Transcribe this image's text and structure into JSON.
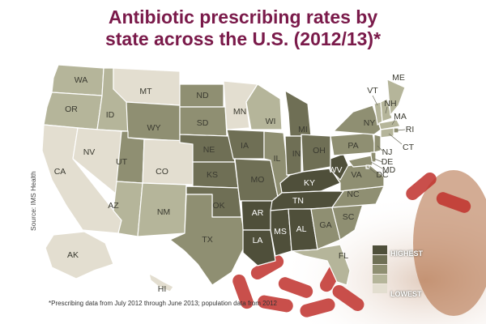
{
  "title": {
    "line1": "Antibiotic prescribing rates by",
    "line2": "state across the U.S. (2012/13)*"
  },
  "source": "Source: IMS Health",
  "footnote": "*Prescribing data from July 2012 through June 2013; population data from 2012",
  "legend": {
    "high_label": "HIGHEST",
    "low_label": "LOWEST",
    "colors": [
      "#4f4f3a",
      "#6f6f55",
      "#8f8f72",
      "#b5b59a",
      "#e3ded0"
    ]
  },
  "map_data": {
    "type": "choropleth",
    "scale": "5 levels, 1 = lowest, 5 = highest",
    "states": [
      {
        "abbr": "WA",
        "level": 2
      },
      {
        "abbr": "OR",
        "level": 2
      },
      {
        "abbr": "CA",
        "level": 1
      },
      {
        "abbr": "ID",
        "level": 2
      },
      {
        "abbr": "NV",
        "level": 1
      },
      {
        "abbr": "MT",
        "level": 1
      },
      {
        "abbr": "WY",
        "level": 3
      },
      {
        "abbr": "UT",
        "level": 3
      },
      {
        "abbr": "AZ",
        "level": 2
      },
      {
        "abbr": "CO",
        "level": 1
      },
      {
        "abbr": "NM",
        "level": 2
      },
      {
        "abbr": "ND",
        "level": 3
      },
      {
        "abbr": "SD",
        "level": 3
      },
      {
        "abbr": "NE",
        "level": 4
      },
      {
        "abbr": "KS",
        "level": 4
      },
      {
        "abbr": "OK",
        "level": 4
      },
      {
        "abbr": "TX",
        "level": 3
      },
      {
        "abbr": "MN",
        "level": 1
      },
      {
        "abbr": "IA",
        "level": 4
      },
      {
        "abbr": "MO",
        "level": 4
      },
      {
        "abbr": "AR",
        "level": 5
      },
      {
        "abbr": "LA",
        "level": 5
      },
      {
        "abbr": "WI",
        "level": 2
      },
      {
        "abbr": "IL",
        "level": 3
      },
      {
        "abbr": "MI",
        "level": 4
      },
      {
        "abbr": "IN",
        "level": 4
      },
      {
        "abbr": "OH",
        "level": 4
      },
      {
        "abbr": "KY",
        "level": 5
      },
      {
        "abbr": "TN",
        "level": 5
      },
      {
        "abbr": "MS",
        "level": 5
      },
      {
        "abbr": "AL",
        "level": 5
      },
      {
        "abbr": "GA",
        "level": 3
      },
      {
        "abbr": "FL",
        "level": 2
      },
      {
        "abbr": "SC",
        "level": 3
      },
      {
        "abbr": "NC",
        "level": 3
      },
      {
        "abbr": "VA",
        "level": 3
      },
      {
        "abbr": "WV",
        "level": 5
      },
      {
        "abbr": "PA",
        "level": 3
      },
      {
        "abbr": "NY",
        "level": 3
      },
      {
        "abbr": "VT",
        "level": 2
      },
      {
        "abbr": "NH",
        "level": 2
      },
      {
        "abbr": "ME",
        "level": 2
      },
      {
        "abbr": "MA",
        "level": 2
      },
      {
        "abbr": "RI",
        "level": 3
      },
      {
        "abbr": "CT",
        "level": 2
      },
      {
        "abbr": "NJ",
        "level": 3
      },
      {
        "abbr": "DE",
        "level": 3
      },
      {
        "abbr": "MD",
        "level": 3
      },
      {
        "abbr": "DC",
        "level": 2
      },
      {
        "abbr": "AK",
        "level": 1
      },
      {
        "abbr": "HI",
        "level": 1
      }
    ]
  }
}
